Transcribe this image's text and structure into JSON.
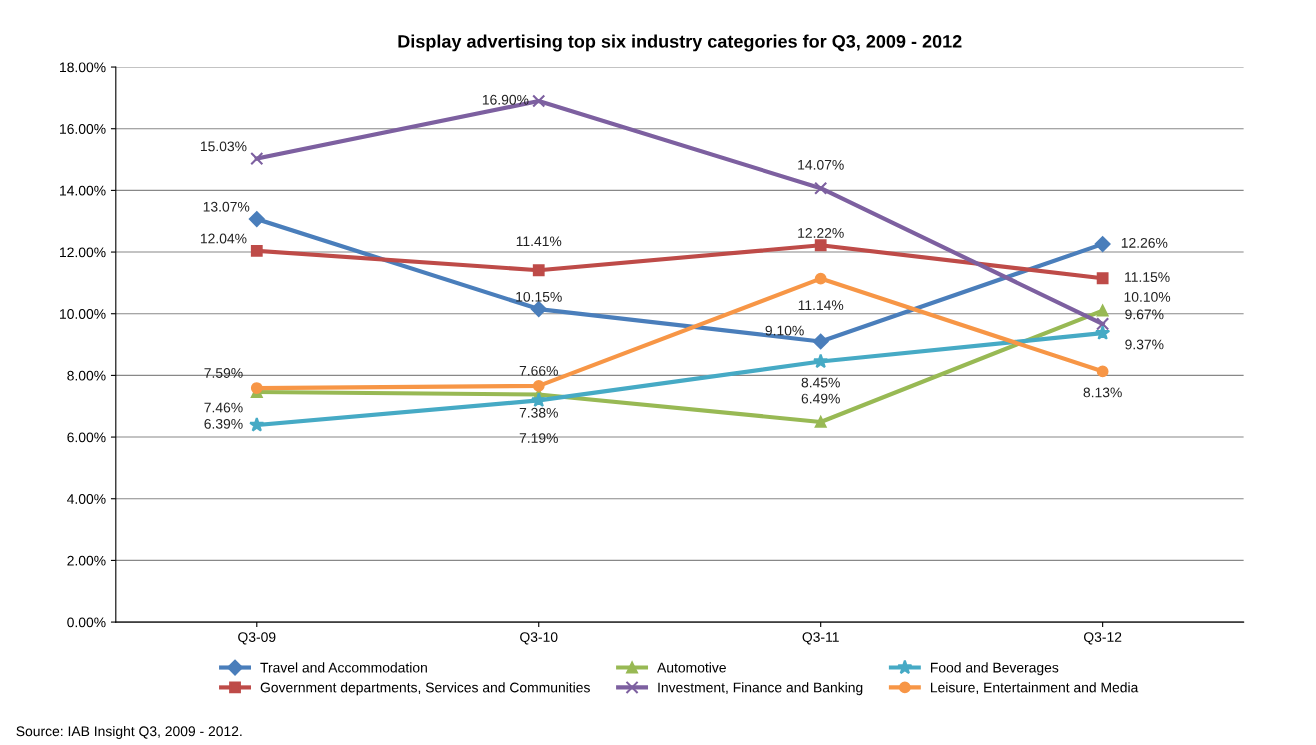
{
  "chart_data": {
    "type": "line",
    "title": "Display advertising top six industry categories for Q3, 2009 - 2012",
    "categories": [
      "Q3-09",
      "Q3-10",
      "Q3-11",
      "Q3-12"
    ],
    "series": [
      {
        "name": "Travel and Accommodation",
        "color": "#4a7ebb",
        "marker": "diamond",
        "values": [
          13.07,
          10.15,
          9.1,
          12.26
        ],
        "value_labels": [
          "13.07%",
          "10.15%",
          "9.10%",
          "12.26%"
        ]
      },
      {
        "name": "Government departments, Services and Communities",
        "color": "#be4b48",
        "marker": "square",
        "values": [
          12.04,
          11.41,
          12.22,
          11.15
        ],
        "value_labels": [
          "12.04%",
          "11.41%",
          "12.22%",
          "11.15%"
        ]
      },
      {
        "name": "Automotive",
        "color": "#98b954",
        "marker": "triangle",
        "values": [
          7.46,
          7.38,
          6.49,
          10.1
        ],
        "value_labels": [
          "7.46%",
          "7.38%",
          "6.49%",
          "10.10%"
        ]
      },
      {
        "name": "Investment, Finance and Banking",
        "color": "#7d60a0",
        "marker": "cross",
        "values": [
          15.03,
          16.9,
          14.07,
          9.67
        ],
        "value_labels": [
          "15.03%",
          "16.90%",
          "14.07%",
          "9.67%"
        ]
      },
      {
        "name": "Food and Beverages",
        "color": "#46aac5",
        "marker": "star",
        "values": [
          6.39,
          7.19,
          8.45,
          9.37
        ],
        "value_labels": [
          "6.39%",
          "7.19%",
          "8.45%",
          "9.37%"
        ]
      },
      {
        "name": "Leisure, Entertainment and Media",
        "color": "#f79646",
        "marker": "circle",
        "values": [
          7.59,
          7.66,
          11.14,
          8.13
        ],
        "value_labels": [
          "7.59%",
          "7.66%",
          "11.14%",
          "8.13%"
        ]
      }
    ],
    "ylim": [
      0,
      18
    ],
    "yticks": [
      {
        "value": 0,
        "label": "0.00%"
      },
      {
        "value": 2,
        "label": "2.00%"
      },
      {
        "value": 4,
        "label": "4.00%"
      },
      {
        "value": 6,
        "label": "6.00%"
      },
      {
        "value": 8,
        "label": "8.00%"
      },
      {
        "value": 10,
        "label": "10.00%"
      },
      {
        "value": 12,
        "label": "12.00%"
      },
      {
        "value": 14,
        "label": "14.00%"
      },
      {
        "value": 16,
        "label": "16.00%"
      },
      {
        "value": 18,
        "label": "18.00%"
      }
    ],
    "grid": "y",
    "legend": "bottom",
    "line_style": "solid",
    "annotations": [
      "Source: IAB Insight Q3, 2009 - 2012."
    ]
  }
}
